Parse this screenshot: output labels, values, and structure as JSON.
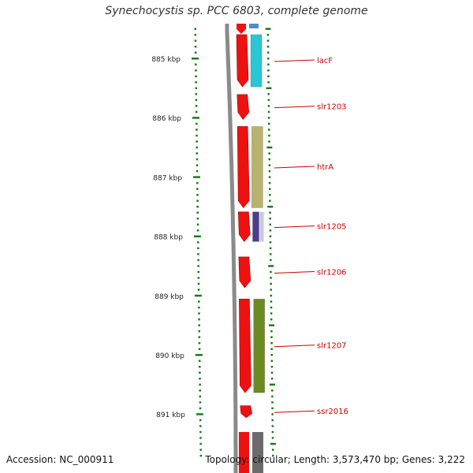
{
  "title": "Synechocystis sp. PCC 6803, complete genome",
  "footer": {
    "accession": "Accession: NC_000911",
    "summary": "Topology: circular; Length: 3,573,470 bp; Genes: 3,222"
  },
  "axis": {
    "unit": "kbp",
    "ticks": [
      {
        "kbp": 885,
        "label": "885 kbp"
      },
      {
        "kbp": 886,
        "label": "886 kbp"
      },
      {
        "kbp": 887,
        "label": "887 kbp"
      },
      {
        "kbp": 888,
        "label": "888 kbp"
      },
      {
        "kbp": 889,
        "label": "889 kbp"
      },
      {
        "kbp": 890,
        "label": "890 kbp"
      },
      {
        "kbp": 891,
        "label": "891 kbp"
      }
    ]
  },
  "genes": [
    {
      "name": "lacF",
      "start_kbp": 884.6,
      "end_kbp": 885.48
    },
    {
      "name": "slr1203",
      "start_kbp": 885.61,
      "end_kbp": 886.03
    },
    {
      "name": "htrA",
      "start_kbp": 886.15,
      "end_kbp": 887.52
    },
    {
      "name": "slr1205",
      "start_kbp": 887.59,
      "end_kbp": 888.09
    },
    {
      "name": "slr1206",
      "start_kbp": 888.35,
      "end_kbp": 888.87
    },
    {
      "name": "slr1207",
      "start_kbp": 889.06,
      "end_kbp": 890.64
    },
    {
      "name": "ssr2016",
      "start_kbp": 890.86,
      "end_kbp": 891.06
    }
  ],
  "features": [
    {
      "gene": "lacF",
      "color": "#29c6d6",
      "start_kbp": 884.6,
      "end_kbp": 885.48
    },
    {
      "gene": "htrA",
      "color": "#b8b26e",
      "start_kbp": 886.15,
      "end_kbp": 887.52
    },
    {
      "gene": "slr1205",
      "color": "#4b3c8e",
      "start_kbp": 887.59,
      "end_kbp": 888.09
    },
    {
      "gene": "slr1207",
      "color": "#6b8a23",
      "start_kbp": 889.06,
      "end_kbp": 890.64
    }
  ],
  "colors": {
    "cds": "#ee1111",
    "label": "#cc0000",
    "tick": "#1a7a1a",
    "backbone": "#8a8a8a"
  }
}
